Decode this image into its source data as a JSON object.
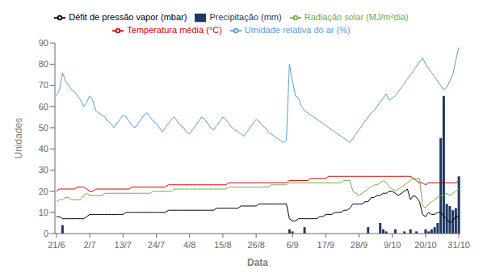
{
  "chart_data": {
    "type": "bar",
    "xlabel": "Data",
    "ylabel": "Unidades",
    "categories": [
      "21/6",
      null,
      null,
      null,
      null,
      null,
      null,
      null,
      null,
      null,
      null,
      "2/7",
      null,
      null,
      null,
      null,
      null,
      null,
      null,
      null,
      null,
      null,
      "13/7",
      null,
      null,
      null,
      null,
      null,
      null,
      null,
      null,
      null,
      null,
      "24/7",
      null,
      null,
      null,
      null,
      null,
      null,
      null,
      null,
      null,
      null,
      "4/8",
      null,
      null,
      null,
      null,
      null,
      null,
      null,
      null,
      null,
      null,
      "15/8",
      null,
      null,
      null,
      null,
      null,
      null,
      null,
      null,
      null,
      null,
      "26/8",
      null,
      null,
      null,
      null,
      null,
      null,
      null,
      null,
      null,
      null,
      null,
      "6/9",
      null,
      null,
      null,
      null,
      null,
      null,
      null,
      null,
      null,
      null,
      "17/9",
      null,
      null,
      null,
      null,
      null,
      null,
      null,
      null,
      null,
      null,
      "28/9",
      null,
      null,
      null,
      null,
      null,
      null,
      null,
      null,
      null,
      null,
      "9/10",
      null,
      null,
      null,
      null,
      null,
      null,
      null,
      null,
      null,
      null,
      "20/10",
      null,
      null,
      null,
      null,
      null,
      null,
      null,
      null,
      null,
      null,
      "31/10"
    ],
    "series": [
      {
        "name": "Precipitação (mm)",
        "type": "bar",
        "color": "#1F3864",
        "values": [
          0,
          0,
          4,
          0,
          0,
          0,
          0,
          0,
          0,
          0,
          0,
          0,
          0,
          0,
          0,
          0,
          0,
          0,
          0,
          0,
          0,
          0,
          0,
          0,
          0,
          0,
          0,
          0,
          0,
          0,
          0,
          0,
          0,
          0,
          0,
          0,
          0,
          0,
          0,
          0,
          0,
          0,
          0,
          0,
          0,
          0,
          0,
          0,
          0,
          0,
          0,
          0,
          0,
          0,
          0,
          0,
          0,
          0,
          0,
          0,
          0,
          0,
          0,
          0,
          0,
          0,
          0,
          0,
          0,
          0,
          0,
          0,
          0,
          0,
          0,
          0,
          0,
          2,
          1,
          0,
          0,
          0,
          3,
          0,
          0,
          0,
          0,
          0,
          0,
          0,
          0,
          0,
          0,
          0,
          0,
          0,
          0,
          0,
          0,
          0,
          0,
          0,
          0,
          3,
          0,
          0,
          0,
          5,
          2,
          1,
          0,
          0,
          2,
          0,
          0,
          1,
          0,
          2,
          0,
          1,
          0,
          0,
          2,
          1,
          2,
          3,
          5,
          45,
          65,
          14,
          13,
          11,
          12,
          27
        ]
      },
      {
        "name": "Temperatura média (°C)",
        "type": "line",
        "color": "#CC0000",
        "values": [
          20,
          21,
          21,
          21,
          21,
          21,
          21,
          22,
          22,
          22,
          21,
          20,
          20,
          21,
          21,
          21,
          21,
          21,
          21,
          21,
          21,
          21,
          21,
          21,
          21,
          22,
          22,
          22,
          22,
          22,
          22,
          22,
          22,
          22,
          22,
          22,
          22,
          23,
          23,
          23,
          23,
          23,
          23,
          23,
          23,
          23,
          23,
          23,
          23,
          23,
          23,
          23,
          23,
          23,
          23,
          23,
          23,
          24,
          24,
          24,
          24,
          24,
          24,
          24,
          24,
          24,
          24,
          24,
          24,
          24,
          24,
          24,
          24,
          24,
          24,
          24,
          24,
          25,
          25,
          25,
          25,
          25,
          25,
          25,
          26,
          26,
          26,
          26,
          26,
          26,
          27,
          27,
          27,
          27,
          27,
          27,
          27,
          27,
          27,
          27,
          27,
          27,
          27,
          27,
          27,
          27,
          27,
          27,
          27,
          27,
          27,
          27,
          27,
          27,
          27,
          27,
          27,
          27,
          26,
          25,
          24,
          24,
          23,
          24,
          24,
          24,
          24,
          24,
          24,
          24,
          24,
          24,
          24,
          25
        ]
      },
      {
        "name": "Umidade relativa do ar (%)",
        "type": "line",
        "color": "#5B9BD5",
        "values": [
          65,
          68,
          76,
          72,
          70,
          68,
          67,
          65,
          63,
          60,
          62,
          65,
          63,
          58,
          57,
          56,
          55,
          53,
          52,
          50,
          52,
          54,
          56,
          55,
          53,
          51,
          50,
          52,
          54,
          56,
          57,
          55,
          53,
          52,
          50,
          48,
          50,
          52,
          54,
          55,
          53,
          51,
          50,
          48,
          47,
          49,
          51,
          53,
          55,
          54,
          52,
          50,
          49,
          51,
          53,
          55,
          54,
          52,
          50,
          49,
          48,
          47,
          46,
          48,
          50,
          52,
          54,
          53,
          51,
          50,
          48,
          47,
          46,
          45,
          44,
          43,
          44,
          80,
          72,
          65,
          64,
          60,
          58,
          57,
          56,
          55,
          54,
          53,
          52,
          51,
          50,
          49,
          48,
          47,
          46,
          45,
          44,
          43,
          45,
          47,
          49,
          51,
          53,
          55,
          57,
          58,
          60,
          62,
          64,
          66,
          63,
          64,
          65,
          67,
          69,
          71,
          73,
          75,
          77,
          79,
          81,
          83,
          80,
          78,
          76,
          74,
          72,
          70,
          68,
          69,
          72,
          75,
          82,
          88
        ]
      },
      {
        "name": "Défit de pressão vapor (mbar)",
        "type": "line",
        "color": "#000000",
        "values": [
          8,
          8,
          7,
          7,
          7,
          7,
          7,
          7,
          7,
          7,
          8,
          9,
          9,
          9,
          9,
          9,
          9,
          9,
          9,
          9,
          9,
          9,
          9,
          10,
          10,
          10,
          10,
          10,
          10,
          10,
          10,
          10,
          10,
          10,
          10,
          10,
          10,
          11,
          11,
          11,
          11,
          11,
          11,
          11,
          11,
          11,
          11,
          11,
          11,
          11,
          11,
          11,
          11,
          12,
          12,
          12,
          12,
          12,
          12,
          12,
          12,
          13,
          13,
          13,
          13,
          13,
          13,
          14,
          14,
          14,
          14,
          14,
          14,
          14,
          14,
          14,
          14,
          7,
          6,
          6,
          7,
          7,
          7,
          7,
          7,
          7,
          7,
          8,
          8,
          9,
          9,
          9,
          10,
          10,
          10,
          11,
          11,
          12,
          14,
          14,
          14,
          14,
          15,
          15,
          17,
          17,
          18,
          18,
          19,
          19,
          20,
          20,
          19,
          18,
          19,
          20,
          21,
          16,
          18,
          17,
          15,
          9,
          8,
          10,
          9,
          9,
          10,
          10,
          8,
          7,
          5,
          6,
          8,
          8
        ]
      },
      {
        "name": "Radiação solar (MJ/m²dia)",
        "type": "line",
        "color": "#70AD47",
        "values": [
          15,
          16,
          16,
          17,
          17,
          16,
          16,
          16,
          16,
          18,
          19,
          18,
          18,
          18,
          18,
          18,
          19,
          19,
          19,
          19,
          19,
          19,
          19,
          19,
          19,
          19,
          19,
          19,
          19,
          19,
          19,
          19,
          20,
          20,
          20,
          20,
          20,
          20,
          20,
          21,
          21,
          21,
          21,
          21,
          21,
          21,
          21,
          21,
          21,
          21,
          21,
          21,
          21,
          21,
          21,
          21,
          21,
          22,
          22,
          22,
          22,
          22,
          22,
          22,
          22,
          22,
          22,
          22,
          22,
          22,
          22,
          23,
          23,
          23,
          23,
          23,
          23,
          24,
          24,
          24,
          24,
          24,
          24,
          24,
          24,
          24,
          24,
          24,
          24,
          24,
          24,
          24,
          24,
          24,
          24,
          25,
          25,
          25,
          20,
          19,
          18,
          19,
          20,
          21,
          22,
          23,
          23,
          24,
          25,
          24,
          22,
          21,
          20,
          21,
          22,
          23,
          24,
          25,
          26,
          26,
          26,
          13,
          12,
          14,
          15,
          16,
          17,
          18,
          18,
          19,
          18,
          19,
          20,
          21
        ]
      }
    ],
    "ylim": [
      0,
      90
    ],
    "yticks": [
      0,
      10,
      20,
      30,
      40,
      50,
      60,
      70,
      80,
      90
    ],
    "grid": false,
    "legend": "top"
  }
}
